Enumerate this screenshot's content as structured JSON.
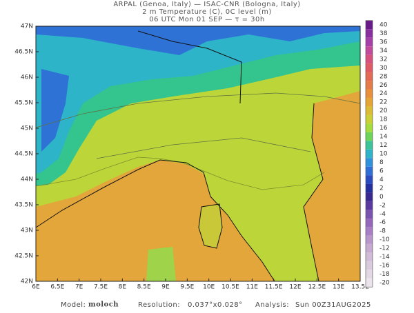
{
  "title": {
    "line1": "ARPAL (Genoa, Italy)  —  ISAC-CNR (Bologna, Italy)",
    "line2": "2 m Temperature (C), 0C level (m)",
    "line3": "06 UTC Mon 01 SEP  —  τ = 30h"
  },
  "map": {
    "lat_ticks": [
      "47N",
      "46.5N",
      "46N",
      "45.5N",
      "45N",
      "44.5N",
      "44N",
      "43.5N",
      "43N",
      "42.5N",
      "42N"
    ],
    "lon_ticks": [
      "6E",
      "6.5E",
      "7E",
      "7.5E",
      "8E",
      "8.5E",
      "9E",
      "9.5E",
      "10E",
      "10.5E",
      "11E",
      "11.5E",
      "12E",
      "12.5E",
      "13E",
      "13.5E"
    ]
  },
  "colorbar": {
    "levels": [
      40,
      38,
      36,
      34,
      32,
      30,
      28,
      26,
      24,
      22,
      20,
      18,
      16,
      14,
      12,
      10,
      8,
      6,
      4,
      2,
      0,
      -2,
      -4,
      -6,
      -8,
      -10,
      -12,
      -14,
      -16,
      -18,
      -20
    ],
    "colors": [
      "#6a1b8a",
      "#8a2fa0",
      "#a63fa8",
      "#c24a9a",
      "#d8507e",
      "#e05a66",
      "#e46a55",
      "#e67a48",
      "#e8903c",
      "#e6a636",
      "#dcbc34",
      "#cbd034",
      "#a6dc3c",
      "#6ed45a",
      "#3cc49a",
      "#2eb4c8",
      "#2f92dc",
      "#2f6ed6",
      "#2a4cc0",
      "#2430a0",
      "#3a2a90",
      "#5a3aa0",
      "#7a52b0",
      "#9466bc",
      "#a87ec6",
      "#b896cc",
      "#c6aad2",
      "#d0bcd8",
      "#dacade",
      "#e2d8e4",
      "#ebe4ec"
    ]
  },
  "footer": {
    "model_label": "Model:",
    "model": "moloch",
    "resolution_label": "Resolution:",
    "resolution": "0.037°x0.028°",
    "analysis_label": "Analysis:",
    "analysis": "Sun 00Z31AUG2025"
  }
}
